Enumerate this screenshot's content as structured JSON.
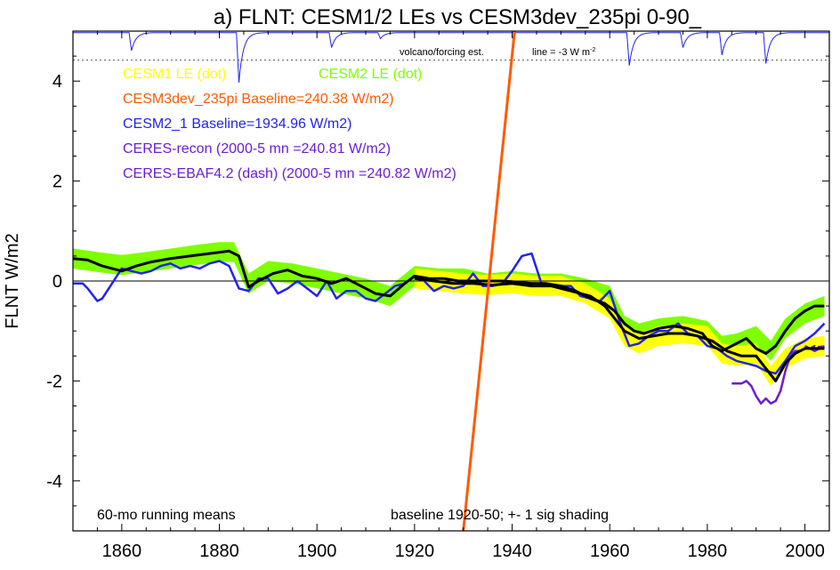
{
  "chart_data": {
    "type": "line",
    "title": "a) FLNT: CESM1/2 LEs vs CESM3dev_235pi 0-90_",
    "ylabel": "FLNT W/m2",
    "xlabel": "",
    "xlim": [
      1850,
      2005
    ],
    "ylim": [
      -5,
      5
    ],
    "x_ticks": [
      1860,
      1880,
      1900,
      1920,
      1940,
      1960,
      1980,
      2000
    ],
    "y_ticks": [
      -4,
      -2,
      0,
      2,
      4
    ],
    "grid": false,
    "zero_line": 0,
    "colors": {
      "cesm1": "#ffff00",
      "cesm2": "#80ff00",
      "cesm3dev": "#ff5a00",
      "cesm2_1": "#2222ee",
      "ceres_recon": "#6a1ecf",
      "ceres_ebaf": "#6a1ecf",
      "ensemble_mean": "#000000",
      "volcano": "#2222ee"
    },
    "legend": [
      {
        "key": "cesm1",
        "text": "CESM1 LE (dot)",
        "color": "#ffff00"
      },
      {
        "key": "cesm2",
        "text": "CESM2 LE (dot)",
        "color": "#80ff00"
      },
      {
        "key": "cesm3dev",
        "text": "CESM3dev_235pi Baseline=240.38 W/m2)",
        "color": "#ff5a00"
      },
      {
        "key": "cesm2_1",
        "text": "CESM2_1 Baseline=1934.96 W/m2)",
        "color": "#2222ee"
      },
      {
        "key": "ceres_recon",
        "text": "CERES-recon (2000-5 mn =240.81 W/m2)",
        "color": "#6a1ecf"
      },
      {
        "key": "ceres_ebaf",
        "text": "CERES-EBAF4.2 (dash) (2000-5 mn =240.82 W/m2)",
        "color": "#6a1ecf"
      }
    ],
    "annotations": {
      "volcano_label": "volcano/forcing est.",
      "volcano_line_label": "line = -3 W m",
      "volcano_line_sup": "-2",
      "bottom_left": "60-mo running means",
      "bottom_right": "baseline 1920-50; +- 1 sig shading"
    },
    "volcano_reference_y": 4.42,
    "volcano_baseline_y": 4.97,
    "volcano_events": [
      {
        "year": 1862,
        "depth": 0.36
      },
      {
        "year": 1884,
        "depth": 1.0
      },
      {
        "year": 1903,
        "depth": 0.3
      },
      {
        "year": 1913,
        "depth": 0.12
      },
      {
        "year": 1964,
        "depth": 0.66
      },
      {
        "year": 1975,
        "depth": 0.3
      },
      {
        "year": 1983,
        "depth": 0.45
      },
      {
        "year": 1992,
        "depth": 0.62
      }
    ],
    "cesm3dev_line": {
      "x": [
        1930,
        1940.5
      ],
      "y": [
        -5,
        5
      ]
    },
    "cesm2_le": {
      "x": [
        1850,
        1855,
        1860,
        1865,
        1870,
        1875,
        1880,
        1883,
        1886,
        1890,
        1895,
        1900,
        1905,
        1910,
        1915,
        1920,
        1925,
        1930,
        1935,
        1940,
        1945,
        1950,
        1955,
        1960,
        1963,
        1966,
        1970,
        1975,
        1980,
        1983,
        1986,
        1990,
        1993,
        1996,
        2000,
        2004
      ],
      "mean": [
        0.45,
        0.38,
        0.32,
        0.38,
        0.45,
        0.52,
        0.58,
        0.58,
        -0.05,
        0.2,
        0.15,
        0.05,
        -0.05,
        -0.15,
        -0.3,
        0.1,
        0.05,
        0.05,
        -0.05,
        0.0,
        -0.05,
        -0.05,
        -0.15,
        -0.3,
        -0.9,
        -1.05,
        -0.95,
        -0.9,
        -1.0,
        -1.3,
        -1.25,
        -1.1,
        -1.4,
        -0.95,
        -0.65,
        -0.5
      ],
      "half_width": 0.2
    },
    "cesm1_le": {
      "x": [
        1920,
        1925,
        1930,
        1935,
        1940,
        1945,
        1950,
        1955,
        1960,
        1963,
        1966,
        1970,
        1975,
        1980,
        1983,
        1986,
        1990,
        1993,
        1996,
        2000,
        2004
      ],
      "mean": [
        0.05,
        0.0,
        -0.05,
        -0.08,
        -0.05,
        -0.1,
        -0.1,
        -0.25,
        -0.55,
        -1.1,
        -1.25,
        -1.1,
        -1.05,
        -1.1,
        -1.45,
        -1.5,
        -1.45,
        -1.9,
        -1.55,
        -1.35,
        -1.3
      ],
      "half_width": 0.2
    },
    "ensemble_means": [
      {
        "key": "cesm2_le_mean",
        "x": [
          1850,
          1853,
          1856,
          1860,
          1863,
          1866,
          1870,
          1874,
          1878,
          1882,
          1884,
          1886,
          1888,
          1891,
          1894,
          1897,
          1900,
          1903,
          1906,
          1909,
          1912,
          1915,
          1918,
          1920,
          1923,
          1926,
          1929,
          1932,
          1935,
          1938,
          1941,
          1944,
          1947,
          1950,
          1953,
          1956,
          1959,
          1961,
          1963,
          1965,
          1967,
          1970,
          1973,
          1976,
          1979,
          1981,
          1983,
          1985,
          1988,
          1990,
          1992,
          1994,
          1996,
          1998,
          2000,
          2002,
          2004
        ],
        "y": [
          0.45,
          0.42,
          0.3,
          0.2,
          0.3,
          0.38,
          0.45,
          0.5,
          0.55,
          0.6,
          0.5,
          -0.12,
          0.0,
          0.15,
          0.22,
          0.1,
          0.05,
          -0.05,
          0.05,
          -0.1,
          -0.25,
          -0.3,
          -0.05,
          0.1,
          0.05,
          0.05,
          0.0,
          0.0,
          0.0,
          0.0,
          -0.02,
          -0.05,
          -0.05,
          -0.1,
          -0.2,
          -0.35,
          -0.45,
          -0.6,
          -0.85,
          -1.0,
          -1.05,
          -0.95,
          -0.9,
          -0.95,
          -1.05,
          -1.3,
          -1.4,
          -1.3,
          -1.15,
          -1.35,
          -1.45,
          -1.3,
          -1.0,
          -0.75,
          -0.6,
          -0.5,
          -0.5
        ]
      },
      {
        "key": "cesm1_le_mean",
        "x": [
          1920,
          1924,
          1928,
          1932,
          1936,
          1940,
          1944,
          1948,
          1952,
          1956,
          1959,
          1961,
          1963,
          1966,
          1969,
          1972,
          1975,
          1978,
          1981,
          1984,
          1987,
          1990,
          1992,
          1994,
          1996,
          1998,
          2000,
          2002,
          2004
        ],
        "y": [
          0.05,
          0.0,
          -0.05,
          -0.05,
          -0.08,
          -0.05,
          -0.1,
          -0.1,
          -0.2,
          -0.3,
          -0.5,
          -0.75,
          -1.0,
          -1.15,
          -1.1,
          -1.05,
          -1.05,
          -1.1,
          -1.2,
          -1.4,
          -1.5,
          -1.5,
          -1.75,
          -2.0,
          -1.65,
          -1.45,
          -1.35,
          -1.35,
          -1.35
        ]
      }
    ],
    "series": [
      {
        "key": "cesm2_1",
        "name": "CESM2_1 Baseline=1934.96 W/m2)",
        "x": [
          1850,
          1852,
          1853,
          1855,
          1856,
          1858,
          1860,
          1862,
          1864,
          1866,
          1868,
          1870,
          1872,
          1874,
          1876,
          1878,
          1880,
          1882,
          1884,
          1886,
          1888,
          1890,
          1892,
          1894,
          1896,
          1898,
          1900,
          1902,
          1904,
          1906,
          1908,
          1910,
          1912,
          1914,
          1916,
          1918,
          1920,
          1922,
          1924,
          1926,
          1928,
          1930,
          1932,
          1934,
          1936,
          1938,
          1940,
          1942,
          1944,
          1946,
          1948,
          1950,
          1952,
          1954,
          1956,
          1958,
          1960,
          1962,
          1964,
          1966,
          1968,
          1970,
          1972,
          1974,
          1976,
          1978,
          1980,
          1982,
          1984,
          1986,
          1988,
          1990,
          1992,
          1994,
          1996,
          1998,
          2000,
          2002,
          2004
        ],
        "y": [
          -0.05,
          -0.05,
          -0.15,
          -0.4,
          -0.35,
          -0.05,
          0.25,
          0.2,
          0.15,
          0.2,
          0.3,
          0.35,
          0.25,
          0.3,
          0.25,
          0.35,
          0.4,
          0.3,
          -0.15,
          -0.2,
          0.05,
          0.05,
          -0.25,
          -0.15,
          0.0,
          -0.15,
          -0.3,
          0.0,
          -0.35,
          -0.2,
          -0.2,
          -0.35,
          -0.4,
          -0.25,
          -0.1,
          -0.05,
          0.1,
          0.0,
          -0.2,
          -0.1,
          -0.15,
          -0.1,
          0.15,
          -0.1,
          -0.1,
          -0.05,
          0.2,
          0.5,
          0.55,
          -0.05,
          -0.1,
          -0.1,
          -0.1,
          -0.3,
          -0.35,
          -0.4,
          -0.2,
          -0.8,
          -1.3,
          -1.25,
          -1.1,
          -1.0,
          -1.0,
          -0.85,
          -1.05,
          -1.1,
          -1.3,
          -1.35,
          -1.5,
          -1.6,
          -1.65,
          -1.7,
          -1.8,
          -1.85,
          -1.6,
          -1.3,
          -1.2,
          -1.05,
          -0.85
        ]
      },
      {
        "key": "ceres_recon",
        "name": "CERES-recon (2000-5 mn =240.81 W/m2)",
        "x": [
          1985,
          1987,
          1988,
          1989,
          1990,
          1991,
          1992,
          1993,
          1994,
          1995,
          1996,
          1997,
          1998,
          1999,
          2000,
          2001,
          2002,
          2003,
          2004
        ],
        "y": [
          -2.05,
          -2.05,
          -2.0,
          -2.1,
          -2.3,
          -2.45,
          -2.35,
          -2.45,
          -2.4,
          -2.2,
          -1.8,
          -1.5,
          -1.4,
          -1.4,
          -1.35,
          -1.35,
          -1.4,
          -1.35,
          -1.3
        ]
      },
      {
        "key": "ceres_ebaf",
        "name": "CERES-EBAF4.2 (dash) (2000-5 mn =240.82 W/m2)",
        "x": [
          2000,
          2001,
          2002,
          2003,
          2004
        ],
        "y": [
          -1.3,
          -1.35,
          -1.3,
          -1.32,
          -1.3
        ]
      }
    ]
  }
}
